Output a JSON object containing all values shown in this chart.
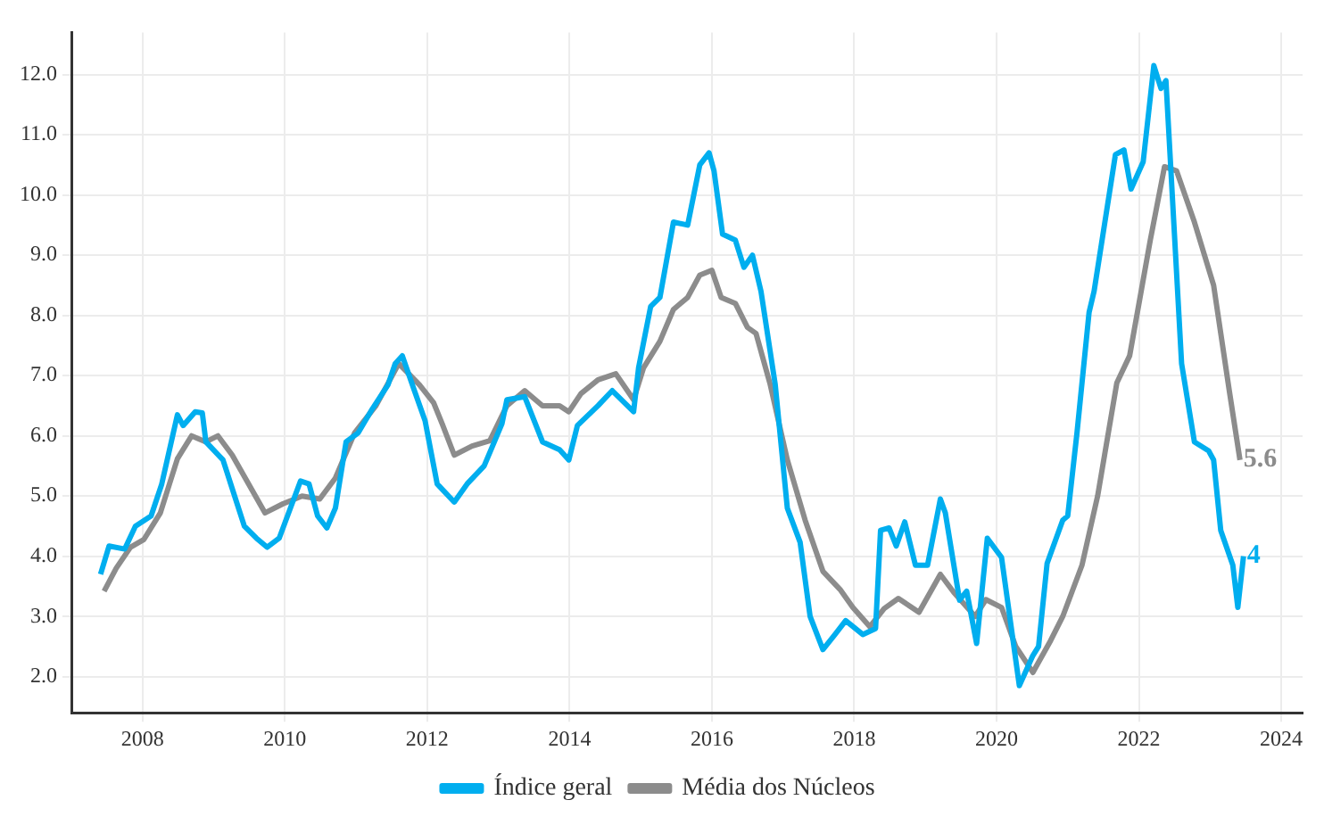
{
  "chart_data": {
    "type": "line",
    "xlim": [
      2007,
      2024.3
    ],
    "ylim": [
      1.4,
      12.7
    ],
    "xticks": [
      2008,
      2010,
      2012,
      2014,
      2016,
      2018,
      2020,
      2022,
      2024
    ],
    "yticks": [
      {
        "value": 2,
        "label": "2.0"
      },
      {
        "value": 3,
        "label": "3.0"
      },
      {
        "value": 4,
        "label": "4.0"
      },
      {
        "value": 5,
        "label": "5.0"
      },
      {
        "value": 6,
        "label": "6.0"
      },
      {
        "value": 7,
        "label": "7.0"
      },
      {
        "value": 8,
        "label": "8.0"
      },
      {
        "value": 9,
        "label": "9.0"
      },
      {
        "value": 10,
        "label": "10.0"
      },
      {
        "value": 11,
        "label": "11.0"
      },
      {
        "value": 12,
        "label": "12.0"
      }
    ],
    "grid": true,
    "legend": "bottom",
    "marker": "none",
    "line_style": "solid",
    "series": [
      {
        "name": "Índice geral",
        "color": "#00aeef",
        "x": [
          2007.41,
          2007.53,
          2007.75,
          2007.9,
          2008.12,
          2008.27,
          2008.49,
          2008.57,
          2008.74,
          2008.84,
          2008.89,
          2009.13,
          2009.43,
          2009.6,
          2009.75,
          2009.92,
          2010.22,
          2010.34,
          2010.46,
          2010.59,
          2010.71,
          2010.86,
          2011.03,
          2011.23,
          2011.45,
          2011.55,
          2011.65,
          2011.82,
          2011.97,
          2012.14,
          2012.38,
          2012.56,
          2012.8,
          2013.05,
          2013.12,
          2013.37,
          2013.62,
          2013.86,
          2013.99,
          2014.11,
          2014.4,
          2014.6,
          2014.9,
          2014.97,
          2015.14,
          2015.27,
          2015.46,
          2015.66,
          2015.83,
          2015.96,
          2016.03,
          2016.15,
          2016.33,
          2016.45,
          2016.57,
          2016.69,
          2016.89,
          2017.06,
          2017.24,
          2017.38,
          2017.56,
          2017.73,
          2017.88,
          2018.12,
          2018.3,
          2018.37,
          2018.49,
          2018.59,
          2018.71,
          2018.86,
          2019.03,
          2019.21,
          2019.28,
          2019.48,
          2019.58,
          2019.72,
          2019.87,
          2020.07,
          2020.32,
          2020.51,
          2020.59,
          2020.71,
          2020.93,
          2021.0,
          2021.13,
          2021.3,
          2021.37,
          2021.67,
          2021.79,
          2021.89,
          2022.06,
          2022.21,
          2022.31,
          2022.38,
          2022.6,
          2022.78,
          2022.98,
          2023.05,
          2023.15,
          2023.32,
          2023.39,
          2023.47
        ],
        "values": [
          3.7,
          4.17,
          4.12,
          4.5,
          4.67,
          5.2,
          6.35,
          6.17,
          6.4,
          6.38,
          5.9,
          5.6,
          4.5,
          4.3,
          4.15,
          4.3,
          5.25,
          5.2,
          4.67,
          4.47,
          4.8,
          5.9,
          6.05,
          6.45,
          6.85,
          7.2,
          7.33,
          6.75,
          6.25,
          5.2,
          4.9,
          5.2,
          5.5,
          6.2,
          6.6,
          6.65,
          5.9,
          5.77,
          5.6,
          6.17,
          6.5,
          6.75,
          6.4,
          7.13,
          8.15,
          8.3,
          9.55,
          9.5,
          10.5,
          10.7,
          10.4,
          9.35,
          9.25,
          8.8,
          9.0,
          8.4,
          6.85,
          4.8,
          4.23,
          3.0,
          2.45,
          2.7,
          2.93,
          2.7,
          2.8,
          4.43,
          4.47,
          4.17,
          4.57,
          3.85,
          3.85,
          4.95,
          4.72,
          3.27,
          3.42,
          2.55,
          4.3,
          3.98,
          1.85,
          2.35,
          2.5,
          3.88,
          4.6,
          4.67,
          6.05,
          8.05,
          8.4,
          10.67,
          10.75,
          10.1,
          10.55,
          12.15,
          11.77,
          11.9,
          7.2,
          5.9,
          5.75,
          5.6,
          4.43,
          3.85,
          3.15,
          4.0
        ]
      },
      {
        "name": "Média dos Núcleos",
        "color": "#8c8c8c",
        "x": [
          2007.46,
          2007.63,
          2007.83,
          2008.02,
          2008.25,
          2008.49,
          2008.69,
          2008.89,
          2009.06,
          2009.26,
          2009.72,
          2009.97,
          2010.24,
          2010.49,
          2010.71,
          2010.98,
          2011.28,
          2011.6,
          2011.89,
          2012.09,
          2012.21,
          2012.38,
          2012.63,
          2012.88,
          2013.12,
          2013.37,
          2013.62,
          2013.86,
          2013.99,
          2014.16,
          2014.4,
          2014.65,
          2014.9,
          2015.04,
          2015.27,
          2015.46,
          2015.66,
          2015.83,
          2016.0,
          2016.13,
          2016.33,
          2016.5,
          2016.62,
          2016.82,
          2017.06,
          2017.31,
          2017.56,
          2017.8,
          2017.98,
          2018.22,
          2018.42,
          2018.62,
          2018.91,
          2019.21,
          2019.4,
          2019.7,
          2019.85,
          2020.07,
          2020.27,
          2020.51,
          2020.76,
          2020.93,
          2021.2,
          2021.42,
          2021.69,
          2021.87,
          2022.16,
          2022.36,
          2022.53,
          2022.78,
          2023.05,
          2023.27,
          2023.42
        ],
        "values": [
          3.42,
          3.8,
          4.15,
          4.28,
          4.72,
          5.62,
          6.0,
          5.9,
          6.0,
          5.68,
          4.72,
          4.87,
          5.0,
          4.95,
          5.3,
          6.05,
          6.5,
          7.2,
          6.85,
          6.55,
          6.2,
          5.68,
          5.83,
          5.92,
          6.5,
          6.75,
          6.5,
          6.5,
          6.4,
          6.7,
          6.93,
          7.03,
          6.6,
          7.13,
          7.57,
          8.1,
          8.3,
          8.67,
          8.75,
          8.3,
          8.2,
          7.8,
          7.7,
          6.85,
          5.6,
          4.6,
          3.75,
          3.45,
          3.15,
          2.83,
          3.13,
          3.3,
          3.07,
          3.7,
          3.4,
          3.0,
          3.28,
          3.15,
          2.5,
          2.07,
          2.6,
          3.0,
          3.85,
          5.0,
          6.88,
          7.33,
          9.25,
          10.47,
          10.4,
          9.55,
          8.5,
          6.75,
          5.6
        ]
      }
    ],
    "annotations": [
      {
        "text": "4",
        "x": 2023.47,
        "y": 4.0
      },
      {
        "text": "5.6",
        "x": 2023.42,
        "y": 5.6
      }
    ]
  }
}
